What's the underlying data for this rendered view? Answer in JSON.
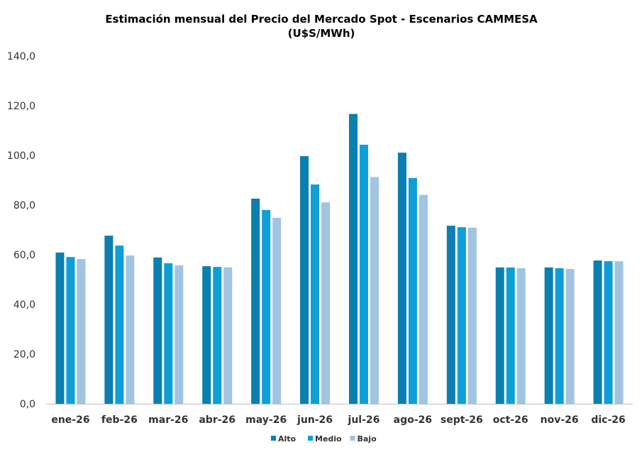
{
  "chart_data": {
    "type": "bar",
    "title": "Estimación mensual del Precio del Mercado Spot - Escenarios CAMMESA",
    "subtitle": "(U$S/MWh)",
    "xlabel": "",
    "ylabel": "",
    "ylim": [
      0,
      140
    ],
    "yticks": [
      "0,0",
      "20,0",
      "40,0",
      "60,0",
      "80,0",
      "100,0",
      "120,0",
      "140,0"
    ],
    "grid": false,
    "legend_position": "bottom",
    "categories": [
      "ene-26",
      "feb-26",
      "mar-26",
      "abr-26",
      "may-26",
      "jun-26",
      "jul-26",
      "ago-26",
      "sept-26",
      "oct-26",
      "nov-26",
      "dic-26"
    ],
    "series": [
      {
        "name": "Alto",
        "color": "#0a7fb0",
        "values": [
          60.9,
          67.7,
          58.9,
          55.4,
          82.6,
          99.7,
          116.7,
          101.1,
          71.7,
          54.9,
          54.9,
          57.7
        ]
      },
      {
        "name": "Medio",
        "color": "#0e9fd6",
        "values": [
          59.1,
          63.7,
          56.6,
          55.1,
          78.0,
          88.3,
          104.3,
          90.9,
          71.1,
          54.9,
          54.6,
          57.4
        ]
      },
      {
        "name": "Bajo",
        "color": "#a0c4e2",
        "values": [
          58.3,
          59.7,
          55.7,
          54.9,
          74.9,
          81.1,
          91.3,
          84.1,
          70.9,
          54.6,
          54.3,
          57.4
        ]
      }
    ]
  }
}
